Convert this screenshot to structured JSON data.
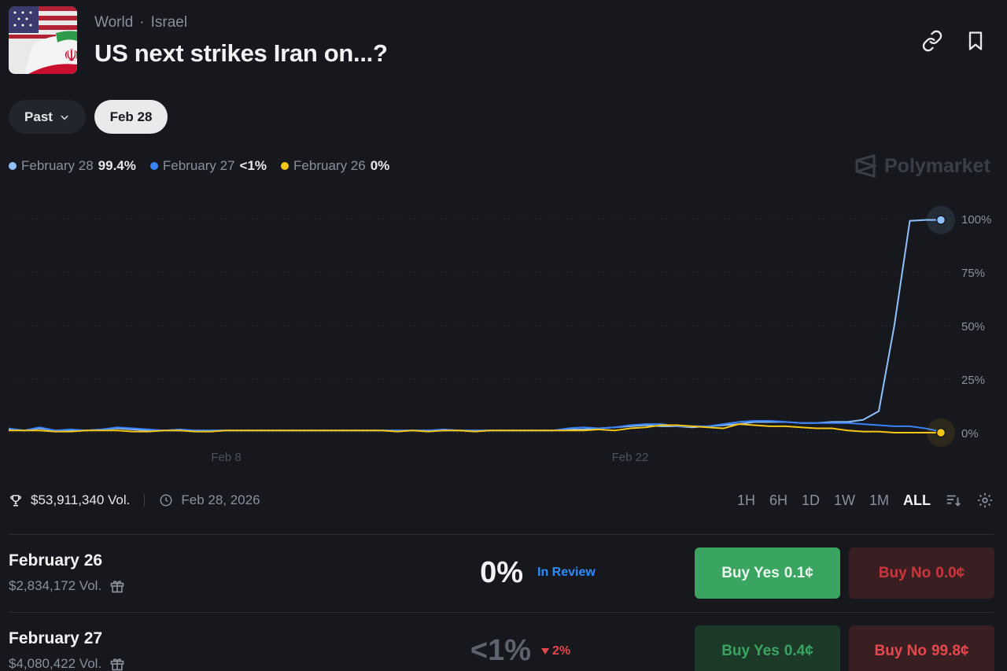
{
  "header": {
    "breadcrumb": [
      "World",
      "Israel"
    ],
    "breadcrumb_sep": "·",
    "title": "US next strikes Iran on...?"
  },
  "filters": {
    "past_label": "Past",
    "selected_date": "Feb 28"
  },
  "legend": [
    {
      "label": "February 28",
      "value": "99.4%",
      "color": "#8fc1ff"
    },
    {
      "label": "February 27",
      "value": "<1%",
      "color": "#3b82f6"
    },
    {
      "label": "February 26",
      "value": "0%",
      "color": "#f5c518"
    }
  ],
  "watermark": "Polymarket",
  "chart_data": {
    "type": "line",
    "x_tick_labels": [
      "Feb 8",
      "Feb 22"
    ],
    "y_tick_labels": [
      "100%",
      "75%",
      "50%",
      "25%",
      "0%"
    ],
    "ylim": [
      0,
      100
    ],
    "grid": true,
    "x": [
      0,
      1,
      2,
      3,
      4,
      5,
      6,
      7,
      8,
      9,
      10,
      11,
      12,
      13,
      14,
      15,
      16,
      17,
      18,
      19,
      20,
      21,
      22,
      23,
      24,
      25,
      26,
      27,
      28,
      29,
      30,
      31,
      32,
      33,
      34,
      35,
      36,
      37,
      38,
      39,
      40,
      41,
      42,
      43,
      44,
      45,
      46,
      47,
      48,
      49,
      50,
      51,
      52,
      53,
      54,
      55,
      56,
      57,
      58,
      59,
      60
    ],
    "series": [
      {
        "name": "February 28",
        "color": "#8fc1ff",
        "values": [
          1.5,
          1,
          2,
          1,
          1,
          1,
          1.5,
          2,
          1.5,
          1,
          1,
          1,
          1,
          1,
          1,
          1,
          1,
          1,
          1,
          1,
          1,
          1,
          1,
          1,
          1,
          1,
          1,
          1,
          1,
          1,
          1,
          1,
          1,
          1,
          1,
          1,
          1.5,
          1.5,
          2,
          2.5,
          3,
          3.5,
          3,
          3,
          2.5,
          3,
          3.5,
          4,
          5,
          5,
          5,
          4.5,
          4.5,
          5,
          5,
          6,
          10,
          50,
          99,
          99.4,
          99.4
        ]
      },
      {
        "name": "February 27",
        "color": "#3b82f6",
        "values": [
          2,
          1,
          2.5,
          1,
          1.5,
          1,
          1.5,
          2.5,
          2,
          1.5,
          1,
          1.5,
          1,
          1,
          1,
          1,
          1,
          1,
          1,
          1,
          1,
          1,
          1,
          1,
          1,
          1,
          1,
          1,
          1.5,
          1,
          1,
          1,
          1,
          1,
          1,
          1,
          2,
          2.5,
          2,
          2.5,
          3.5,
          4,
          4,
          3,
          3,
          3,
          4,
          5,
          5.5,
          5.5,
          5,
          4.5,
          4.5,
          4.5,
          4.5,
          4,
          3.5,
          3,
          3,
          2,
          0.5
        ]
      },
      {
        "name": "February 26",
        "color": "#f5c518",
        "values": [
          1,
          1,
          1,
          0.5,
          0.5,
          1,
          1,
          1,
          0.5,
          0.5,
          1,
          1,
          0.5,
          0.5,
          1,
          1,
          1,
          1,
          1,
          1,
          1,
          1,
          1,
          1,
          1,
          0.5,
          1,
          0.5,
          1,
          1,
          0.5,
          1,
          1,
          1,
          1,
          1,
          1,
          1,
          1.5,
          1,
          2,
          2.5,
          3.5,
          3.5,
          3,
          2.5,
          2,
          4,
          3.5,
          3,
          3,
          2.5,
          2,
          2,
          1,
          0.5,
          0.5,
          0,
          0,
          0,
          0
        ]
      }
    ]
  },
  "stats": {
    "volume": "$53,911,340 Vol.",
    "end_date": "Feb 28, 2026"
  },
  "ranges": [
    "1H",
    "6H",
    "1D",
    "1W",
    "1M",
    "ALL"
  ],
  "active_range": "ALL",
  "outcomes": [
    {
      "name": "February 26",
      "volume": "$2,834,172 Vol.",
      "pct": "0%",
      "status": "In Review",
      "status_color": "#2f8cff",
      "yes_label": "Buy Yes",
      "yes_price": "0.1¢",
      "no_label": "Buy No",
      "no_price": "0.0¢"
    },
    {
      "name": "February 27",
      "volume": "$4,080,422 Vol.",
      "pct": "<1%",
      "change": "2%",
      "change_color": "#e5484d",
      "yes_label": "Buy Yes",
      "yes_price": "0.4¢",
      "no_label": "Buy No",
      "no_price": "99.8¢"
    }
  ]
}
